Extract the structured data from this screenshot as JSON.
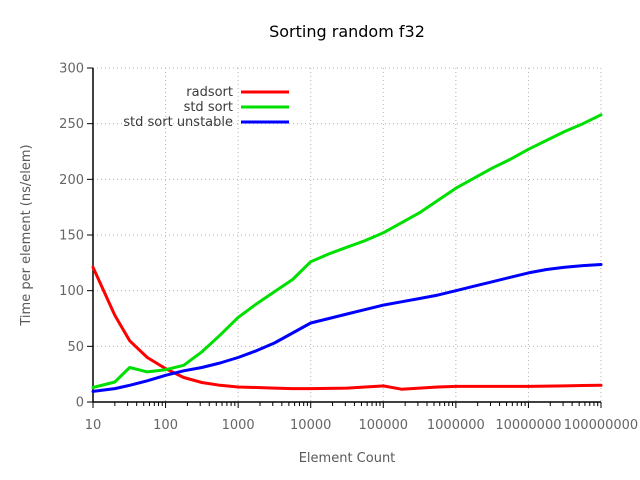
{
  "chart_data": {
    "type": "line",
    "title": "Sorting random f32",
    "xlabel": "Element Count",
    "ylabel": "Time per element (ns/elem)",
    "x_scale": "log10",
    "xlim": [
      10,
      100000000
    ],
    "ylim": [
      0,
      300
    ],
    "grid": true,
    "legend_position": "top-left-inside",
    "x_ticks": [
      10,
      100,
      1000,
      10000,
      100000,
      1000000,
      10000000,
      100000000
    ],
    "x_tick_labels": [
      "10",
      "100",
      "1000",
      "10000",
      "100000",
      "1000000",
      "10000000",
      "100000000"
    ],
    "y_ticks": [
      0,
      50,
      100,
      150,
      200,
      250,
      300
    ],
    "y_tick_labels": [
      "0",
      "50",
      "100",
      "150",
      "200",
      "250",
      "300"
    ],
    "x": [
      10,
      20,
      32,
      56,
      100,
      178,
      316,
      562,
      1000,
      1778,
      3162,
      5623,
      10000,
      17783,
      31623,
      56234,
      100000,
      177828,
      316228,
      562341,
      1000000,
      1778279,
      3162278,
      5623413,
      10000000,
      17782794,
      31622777,
      56234133,
      100000000
    ],
    "series": [
      {
        "name": "radsort",
        "color": "#ff0000",
        "values": [
          121,
          78,
          55,
          40,
          30,
          22,
          17.5,
          15,
          13.5,
          13,
          12.5,
          12,
          12,
          12.2,
          12.5,
          13.5,
          14.5,
          11.5,
          12.5,
          13.5,
          14,
          14,
          14,
          14,
          14,
          14.3,
          14.5,
          14.8,
          15
        ]
      },
      {
        "name": "std sort",
        "color": "#00e000",
        "values": [
          13,
          18,
          31,
          27,
          29,
          33,
          45,
          60,
          76,
          88,
          99,
          110,
          126,
          133,
          139,
          145,
          152,
          161,
          170,
          181,
          192,
          201,
          210,
          218,
          227,
          235,
          243,
          250,
          258
        ]
      },
      {
        "name": "std sort unstable",
        "color": "#0000ff",
        "values": [
          9.5,
          12,
          15,
          19,
          24,
          28,
          31,
          35,
          40,
          46,
          53,
          62,
          71,
          75,
          79,
          83,
          87,
          90,
          93,
          96,
          100,
          104,
          108,
          112,
          116,
          119,
          121,
          122.5,
          123.5
        ]
      }
    ]
  }
}
